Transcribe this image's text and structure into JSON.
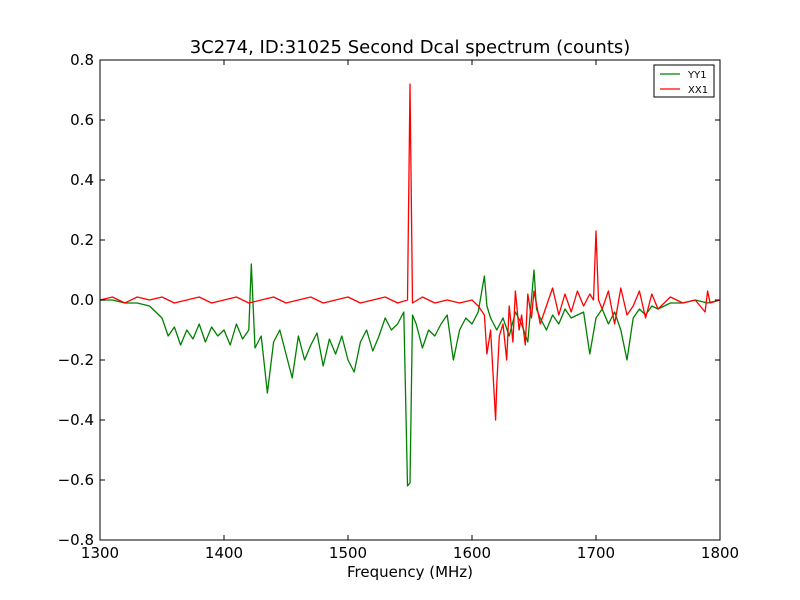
{
  "chart_data": {
    "type": "line",
    "title": "3C274, ID:31025 Second Dcal spectrum (counts)",
    "xlabel": "Frequency (MHz)",
    "ylabel": "",
    "xlim": [
      1300,
      1800
    ],
    "ylim": [
      -0.8,
      0.8
    ],
    "xticks": [
      1300,
      1400,
      1500,
      1600,
      1700,
      1800
    ],
    "yticks": [
      -0.8,
      -0.6,
      -0.4,
      -0.2,
      0.0,
      0.2,
      0.4,
      0.6,
      0.8
    ],
    "xtick_labels": [
      "1300",
      "1400",
      "1500",
      "1600",
      "1700",
      "1800"
    ],
    "ytick_labels": [
      "−0.8",
      "−0.6",
      "−0.4",
      "−0.2",
      "0.0",
      "0.2",
      "0.4",
      "0.6",
      "0.8"
    ],
    "grid": false,
    "legend_position": "top-right",
    "series": [
      {
        "name": "YY1",
        "color": "#008000",
        "x": [
          1300,
          1310,
          1320,
          1330,
          1340,
          1345,
          1350,
          1355,
          1360,
          1365,
          1370,
          1375,
          1380,
          1385,
          1390,
          1395,
          1400,
          1405,
          1410,
          1415,
          1420,
          1422,
          1425,
          1430,
          1435,
          1440,
          1445,
          1450,
          1455,
          1460,
          1465,
          1470,
          1475,
          1480,
          1485,
          1490,
          1495,
          1500,
          1505,
          1510,
          1515,
          1520,
          1525,
          1530,
          1535,
          1540,
          1545,
          1548,
          1550,
          1552,
          1555,
          1560,
          1565,
          1570,
          1575,
          1580,
          1585,
          1590,
          1595,
          1600,
          1605,
          1610,
          1612,
          1615,
          1620,
          1625,
          1630,
          1635,
          1640,
          1645,
          1650,
          1652,
          1655,
          1660,
          1665,
          1670,
          1675,
          1680,
          1685,
          1690,
          1695,
          1700,
          1705,
          1710,
          1715,
          1720,
          1725,
          1730,
          1735,
          1740,
          1745,
          1750,
          1760,
          1770,
          1780,
          1790,
          1800
        ],
        "y": [
          0.0,
          0.0,
          -0.01,
          -0.01,
          -0.02,
          -0.04,
          -0.06,
          -0.12,
          -0.09,
          -0.15,
          -0.1,
          -0.13,
          -0.08,
          -0.14,
          -0.09,
          -0.12,
          -0.1,
          -0.15,
          -0.08,
          -0.13,
          -0.1,
          0.12,
          -0.16,
          -0.12,
          -0.31,
          -0.14,
          -0.1,
          -0.18,
          -0.26,
          -0.12,
          -0.2,
          -0.15,
          -0.11,
          -0.22,
          -0.13,
          -0.18,
          -0.12,
          -0.2,
          -0.24,
          -0.14,
          -0.1,
          -0.17,
          -0.12,
          -0.06,
          -0.1,
          -0.08,
          -0.04,
          -0.62,
          -0.61,
          -0.05,
          -0.08,
          -0.16,
          -0.1,
          -0.12,
          -0.08,
          -0.05,
          -0.2,
          -0.1,
          -0.06,
          -0.08,
          -0.04,
          0.08,
          -0.02,
          -0.06,
          -0.1,
          -0.06,
          -0.12,
          -0.04,
          -0.08,
          -0.14,
          0.1,
          -0.03,
          -0.06,
          -0.1,
          -0.05,
          -0.08,
          -0.03,
          -0.06,
          -0.05,
          -0.04,
          -0.18,
          -0.06,
          -0.03,
          -0.08,
          -0.04,
          -0.1,
          -0.2,
          -0.06,
          -0.03,
          -0.05,
          -0.02,
          -0.03,
          -0.01,
          -0.01,
          0.0,
          -0.01,
          0.0
        ]
      },
      {
        "name": "XX1",
        "color": "#ff0000",
        "x": [
          1300,
          1310,
          1320,
          1330,
          1340,
          1350,
          1360,
          1370,
          1380,
          1390,
          1400,
          1410,
          1420,
          1430,
          1440,
          1450,
          1460,
          1470,
          1480,
          1490,
          1500,
          1510,
          1520,
          1530,
          1540,
          1548,
          1550,
          1552,
          1560,
          1570,
          1580,
          1590,
          1600,
          1605,
          1610,
          1612,
          1615,
          1617,
          1619,
          1620,
          1622,
          1625,
          1628,
          1630,
          1633,
          1635,
          1638,
          1640,
          1643,
          1645,
          1648,
          1650,
          1655,
          1660,
          1665,
          1670,
          1675,
          1680,
          1685,
          1690,
          1695,
          1698,
          1700,
          1702,
          1705,
          1710,
          1715,
          1720,
          1725,
          1730,
          1735,
          1740,
          1745,
          1750,
          1760,
          1770,
          1780,
          1788,
          1790,
          1792,
          1800
        ],
        "y": [
          0.0,
          0.01,
          -0.01,
          0.01,
          0.0,
          0.01,
          -0.01,
          0.0,
          0.01,
          -0.01,
          0.0,
          0.01,
          -0.01,
          0.0,
          0.01,
          -0.01,
          0.0,
          0.01,
          -0.01,
          0.0,
          0.01,
          -0.01,
          0.0,
          0.01,
          -0.01,
          0.0,
          0.72,
          -0.01,
          0.01,
          -0.01,
          0.0,
          -0.01,
          0.0,
          -0.02,
          -0.05,
          -0.18,
          -0.1,
          -0.25,
          -0.4,
          -0.28,
          -0.12,
          -0.08,
          -0.2,
          -0.02,
          -0.14,
          0.03,
          -0.1,
          -0.05,
          -0.15,
          0.02,
          -0.06,
          0.03,
          -0.08,
          -0.02,
          0.04,
          -0.05,
          0.02,
          -0.04,
          0.03,
          -0.02,
          0.02,
          0.0,
          0.23,
          0.0,
          -0.03,
          0.03,
          -0.08,
          0.04,
          -0.05,
          -0.02,
          0.03,
          -0.06,
          0.02,
          -0.03,
          0.01,
          -0.01,
          0.0,
          -0.04,
          0.03,
          -0.01,
          0.0
        ]
      }
    ]
  }
}
